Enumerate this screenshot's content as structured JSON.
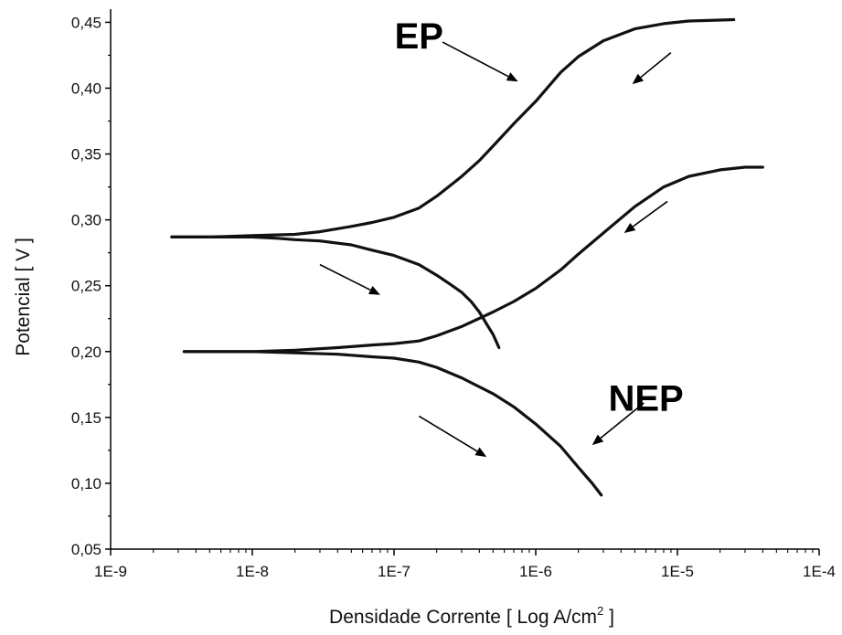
{
  "chart_data": {
    "type": "line",
    "title": "",
    "xlabel": "Densidade Corrente [ Log A/cm",
    "xlabel_sup": "2",
    "xlabel_end": " ]",
    "ylabel": "Potencial [ V ]",
    "x_scale": "log",
    "xlim": [
      1e-09,
      0.0001
    ],
    "ylim": [
      0.05,
      0.46
    ],
    "x_ticks": [
      1e-09,
      1e-08,
      1e-07,
      1e-06,
      1e-05,
      0.0001
    ],
    "x_tick_labels": [
      "1E-9",
      "1E-8",
      "1E-7",
      "1E-6",
      "1E-5",
      "1E-4"
    ],
    "y_ticks": [
      0.05,
      0.1,
      0.15,
      0.2,
      0.25,
      0.3,
      0.35,
      0.4,
      0.45
    ],
    "y_tick_labels": [
      "0,05",
      "0,10",
      "0,15",
      "0,20",
      "0,25",
      "0,30",
      "0,35",
      "0,40",
      "0,45"
    ],
    "grid": false,
    "legend": "none",
    "annotations": [
      {
        "text": "EP",
        "x": 1.5e-07,
        "y": 0.43
      },
      {
        "text": "NEP",
        "x": 6e-06,
        "y": 0.155
      }
    ],
    "series": [
      {
        "x": [
          2.7e-09,
          5e-09,
          1e-08,
          2e-08,
          3e-08,
          5e-08,
          7e-08,
          1e-07,
          1.5e-07,
          2e-07,
          3e-07,
          4e-07,
          5e-07,
          7e-07,
          1e-06,
          1.5e-06,
          2e-06,
          3e-06,
          5e-06,
          8e-06,
          1.2e-05,
          2.5e-05
        ],
        "y": [
          0.287,
          0.287,
          0.288,
          0.289,
          0.291,
          0.295,
          0.298,
          0.302,
          0.309,
          0.318,
          0.333,
          0.345,
          0.356,
          0.373,
          0.39,
          0.412,
          0.424,
          0.436,
          0.445,
          0.449,
          0.451,
          0.452
        ]
      },
      {
        "x": [
          2.7e-09,
          5e-09,
          1e-08,
          1.5e-08,
          2e-08,
          3e-08,
          5e-08,
          7e-08,
          1e-07,
          1.5e-07,
          2e-07,
          2.5e-07,
          3e-07,
          3.5e-07,
          4e-07,
          4.5e-07,
          5e-07,
          5.5e-07
        ],
        "y": [
          0.287,
          0.287,
          0.287,
          0.286,
          0.285,
          0.284,
          0.281,
          0.277,
          0.273,
          0.266,
          0.258,
          0.251,
          0.245,
          0.238,
          0.23,
          0.221,
          0.213,
          0.203
        ]
      },
      {
        "x": [
          3.3e-09,
          5e-09,
          1e-08,
          2e-08,
          4e-08,
          7e-08,
          1e-07,
          1.5e-07,
          2e-07,
          3e-07,
          5e-07,
          7e-07,
          1e-06,
          1.5e-06,
          2e-06,
          3e-06,
          5e-06,
          8e-06,
          1.2e-05,
          2e-05,
          3e-05,
          4e-05
        ],
        "y": [
          0.2,
          0.2,
          0.2,
          0.201,
          0.203,
          0.205,
          0.206,
          0.208,
          0.212,
          0.219,
          0.23,
          0.238,
          0.248,
          0.262,
          0.274,
          0.29,
          0.31,
          0.325,
          0.333,
          0.338,
          0.34,
          0.34
        ]
      },
      {
        "x": [
          3.3e-09,
          5e-09,
          1e-08,
          2e-08,
          4e-08,
          7e-08,
          1e-07,
          1.5e-07,
          2e-07,
          3e-07,
          5e-07,
          7e-07,
          1e-06,
          1.5e-06,
          2e-06,
          2.5e-06,
          2.9e-06
        ],
        "y": [
          0.2,
          0.2,
          0.2,
          0.199,
          0.198,
          0.196,
          0.195,
          0.192,
          0.188,
          0.18,
          0.168,
          0.158,
          0.145,
          0.128,
          0.112,
          0.1,
          0.091
        ]
      }
    ],
    "arrows": [
      {
        "from": [
          2.2e-07,
          0.435
        ],
        "to": [
          7.5e-07,
          0.405
        ]
      },
      {
        "from": [
          9e-06,
          0.427
        ],
        "to": [
          4.8e-06,
          0.403
        ]
      },
      {
        "from": [
          3e-08,
          0.266
        ],
        "to": [
          8e-08,
          0.243
        ]
      },
      {
        "from": [
          8.5e-06,
          0.314
        ],
        "to": [
          4.2e-06,
          0.29
        ]
      },
      {
        "from": [
          1.5e-07,
          0.151
        ],
        "to": [
          4.5e-07,
          0.12
        ]
      },
      {
        "from": [
          5.8e-06,
          0.161
        ],
        "to": [
          2.5e-06,
          0.129
        ]
      }
    ]
  }
}
